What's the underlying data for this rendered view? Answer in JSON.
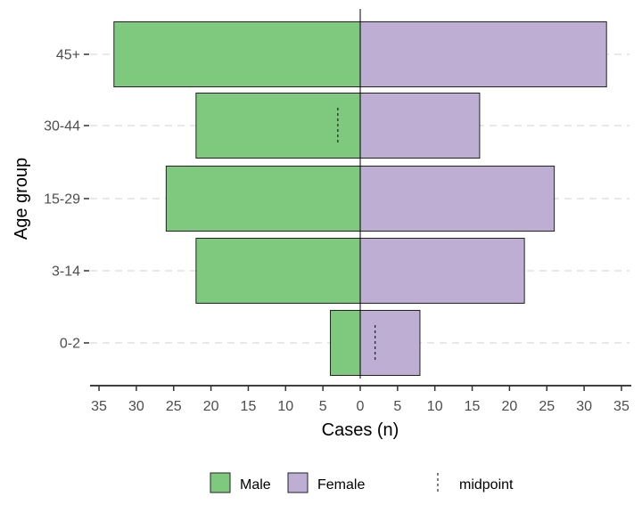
{
  "chart_data": {
    "type": "bar",
    "orientation": "horizontal",
    "layout": "population-pyramid",
    "xlabel": "Cases (n)",
    "ylabel": "Age group",
    "categories": [
      "0-2",
      "3-14",
      "15-29",
      "30-44",
      "45+"
    ],
    "series": [
      {
        "name": "Male",
        "color": "#7fc97f",
        "values": [
          4,
          22,
          26,
          22,
          33
        ],
        "direction": "left"
      },
      {
        "name": "Female",
        "color": "#beaed4",
        "values": [
          8,
          22,
          26,
          16,
          33
        ],
        "direction": "right"
      }
    ],
    "xlim": [
      -35,
      35
    ],
    "xticks": [
      -35,
      -30,
      -25,
      -20,
      -15,
      -10,
      -5,
      0,
      5,
      10,
      15,
      20,
      25,
      30,
      35
    ],
    "xtick_labels": [
      "35",
      "30",
      "25",
      "20",
      "15",
      "10",
      "5",
      "0",
      "5",
      "10",
      "15",
      "20",
      "25",
      "30",
      "35"
    ],
    "midpoint_markers": [
      {
        "category": "0-2",
        "value": 2
      },
      {
        "category": "30-44",
        "value": -3
      }
    ],
    "midpoint_label": "midpoint",
    "grid": "horizontal dashed",
    "legend_position": "bottom"
  }
}
